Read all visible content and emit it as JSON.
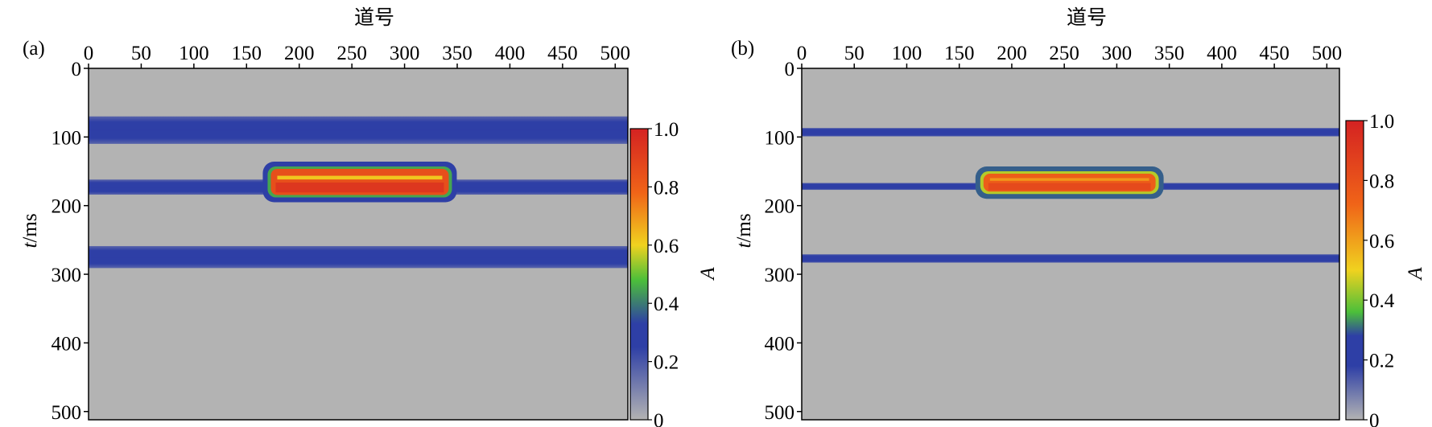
{
  "chart_data": [
    {
      "type": "heatmap",
      "panel_label": "(a)",
      "xlabel": "道号",
      "ylabel_italic": "t",
      "ylabel_unit": "/ms",
      "x_axis_position": "top",
      "xlim": [
        0,
        512
      ],
      "ylim": [
        0,
        512
      ],
      "xticks": [
        0,
        50,
        100,
        150,
        200,
        250,
        300,
        350,
        400,
        450,
        500
      ],
      "yticks": [
        0,
        100,
        200,
        300,
        400,
        500
      ],
      "colorbar": {
        "label": "A",
        "ticks": [
          "0",
          "0.2",
          "0.4",
          "0.6",
          "0.8",
          "1.0"
        ],
        "range": [
          0,
          1.0
        ],
        "colors": [
          "#b3b3b3",
          "#2e3fa6",
          "#2e3fa6",
          "#4cbf3a",
          "#f0d21f",
          "#f06418",
          "#d42222"
        ],
        "stops": [
          0,
          0.25,
          0.33,
          0.48,
          0.6,
          0.78,
          1.0
        ]
      },
      "background_value": 0.0,
      "features": [
        {
          "kind": "band",
          "t": 90,
          "half_width": 20,
          "value": 0.28,
          "x_from": 0,
          "x_to": 512
        },
        {
          "kind": "band",
          "t": 173,
          "half_width": 11,
          "value": 0.28,
          "x_from": 0,
          "x_to": 512
        },
        {
          "kind": "band",
          "t": 275,
          "half_width": 16,
          "value": 0.28,
          "x_from": 0,
          "x_to": 512
        },
        {
          "kind": "anomaly",
          "t_top": 143,
          "t_bottom": 188,
          "x_from": 170,
          "x_to": 345,
          "value": 0.85
        }
      ]
    },
    {
      "type": "heatmap",
      "panel_label": "(b)",
      "xlabel": "道号",
      "ylabel_italic": "t",
      "ylabel_unit": "/ms",
      "x_axis_position": "top",
      "xlim": [
        0,
        512
      ],
      "ylim": [
        0,
        512
      ],
      "xticks": [
        0,
        50,
        100,
        150,
        200,
        250,
        300,
        350,
        400,
        450,
        500
      ],
      "yticks": [
        0,
        100,
        200,
        300,
        400,
        500
      ],
      "colorbar": {
        "label": "A",
        "ticks": [
          "0",
          "0.2",
          "0.4",
          "0.6",
          "0.8",
          "1.0"
        ],
        "range": [
          0,
          1.0
        ],
        "colors": [
          "#b3b3b3",
          "#2e3fa6",
          "#2e3fa6",
          "#4cbf3a",
          "#f0d21f",
          "#f06418",
          "#d42222"
        ],
        "stops": [
          0,
          0.18,
          0.28,
          0.36,
          0.5,
          0.72,
          1.0
        ]
      },
      "background_value": 0.0,
      "features": [
        {
          "kind": "band",
          "t": 93,
          "half_width": 6,
          "value": 0.25,
          "x_from": 0,
          "x_to": 512
        },
        {
          "kind": "band",
          "t": 172,
          "half_width": 5,
          "value": 0.22,
          "x_from": 0,
          "x_to": 512
        },
        {
          "kind": "band",
          "t": 277,
          "half_width": 6,
          "value": 0.24,
          "x_from": 0,
          "x_to": 512
        },
        {
          "kind": "anomaly",
          "t_top": 150,
          "t_bottom": 183,
          "x_from": 170,
          "x_to": 340,
          "value": 0.75
        }
      ]
    }
  ]
}
